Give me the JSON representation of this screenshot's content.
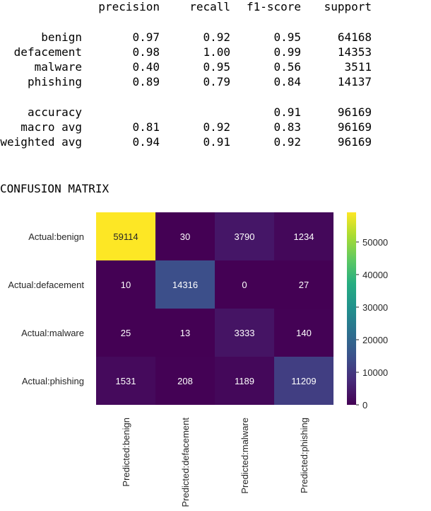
{
  "report": {
    "headers": [
      "precision",
      "recall",
      "f1-score",
      "support"
    ],
    "rows": [
      {
        "label": "benign",
        "precision": "0.97",
        "recall": "0.92",
        "f1": "0.95",
        "support": "64168"
      },
      {
        "label": "defacement",
        "precision": "0.98",
        "recall": "1.00",
        "f1": "0.99",
        "support": "14353"
      },
      {
        "label": "malware",
        "precision": "0.40",
        "recall": "0.95",
        "f1": "0.56",
        "support": "3511"
      },
      {
        "label": "phishing",
        "precision": "0.89",
        "recall": "0.79",
        "f1": "0.84",
        "support": "14137"
      }
    ],
    "summary": [
      {
        "label": "accuracy",
        "precision": "",
        "recall": "",
        "f1": "0.91",
        "support": "96169"
      },
      {
        "label": "macro avg",
        "precision": "0.81",
        "recall": "0.92",
        "f1": "0.83",
        "support": "96169"
      },
      {
        "label": "weighted avg",
        "precision": "0.94",
        "recall": "0.91",
        "f1": "0.92",
        "support": "96169"
      }
    ]
  },
  "confusion_title": "CONFUSION MATRIX",
  "chart_data": {
    "type": "heatmap",
    "row_labels": [
      "Actual:benign",
      "Actual:defacement",
      "Actual:malware",
      "Actual:phishing"
    ],
    "col_labels": [
      "Predicted:benign",
      "Predicted:defacement",
      "Predicted:malware",
      "Predicted:phishing"
    ],
    "values": [
      [
        59114,
        30,
        3790,
        1234
      ],
      [
        10,
        14316,
        0,
        27
      ],
      [
        25,
        13,
        3333,
        140
      ],
      [
        1531,
        208,
        1189,
        11209
      ]
    ],
    "colormap": "viridis",
    "colorbar": {
      "min": 0,
      "max": 59114,
      "ticks": [
        0,
        10000,
        20000,
        30000,
        40000,
        50000
      ]
    },
    "annotation_colors": {
      "dark_cell": "#ffffff",
      "light_cell": "#262626"
    }
  }
}
